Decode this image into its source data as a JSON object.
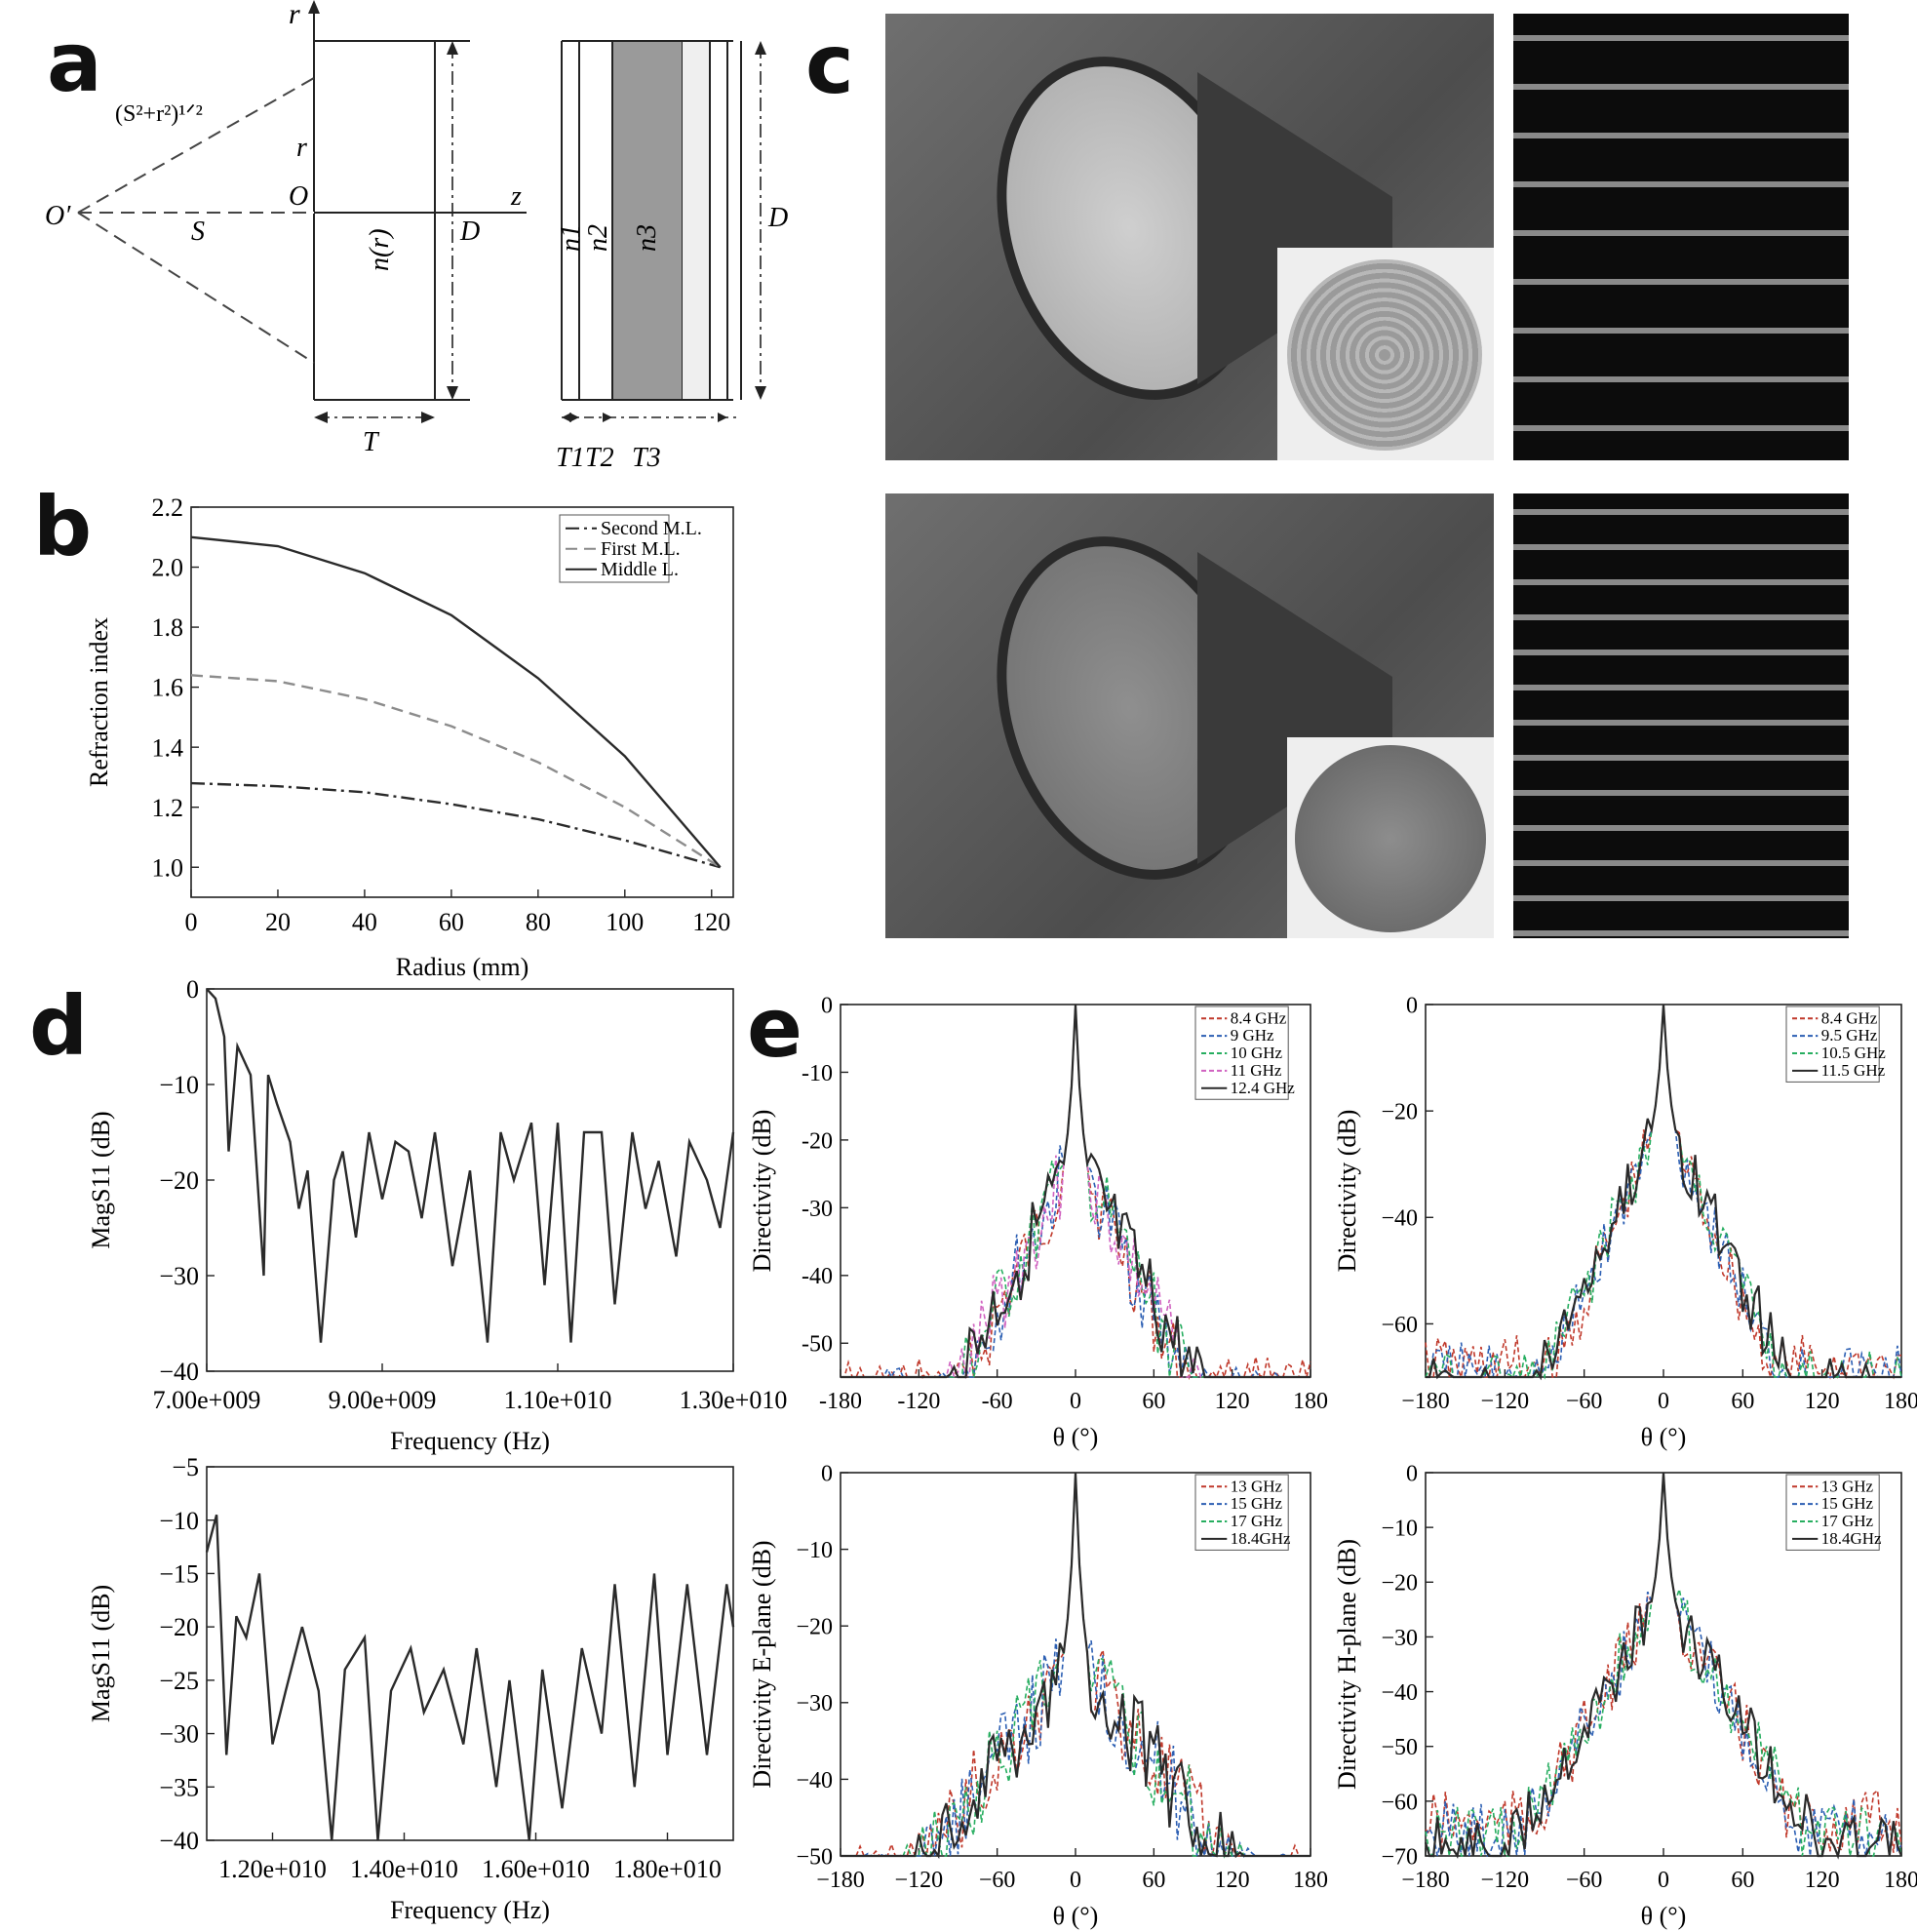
{
  "letters": {
    "a": "a",
    "b": "b",
    "c": "c",
    "d": "d",
    "e": "e"
  },
  "panel_a": {
    "r_axis": "r",
    "hyp": "(S²+r²)¹ᐟ²",
    "r": "r",
    "O": "O",
    "Oprime": "O′",
    "S": "S",
    "z": "z",
    "D": "D",
    "nr": "n(r)",
    "T": "T",
    "D2": "D",
    "n1": "n1",
    "n2": "n2",
    "n3": "n3",
    "T1": "T1",
    "T2": "T2",
    "T3": "T3"
  },
  "chart_data": [
    {
      "id": "b",
      "type": "line",
      "xlabel": "Radius (mm)",
      "ylabel": "Refraction index",
      "xlim": [
        0,
        125
      ],
      "ylim": [
        0.9,
        2.2
      ],
      "xticks": [
        0,
        20,
        40,
        60,
        80,
        100,
        120
      ],
      "yticks": [
        1.0,
        1.2,
        1.4,
        1.6,
        1.8,
        2.0,
        2.2
      ],
      "legend_position": "top-right",
      "series": [
        {
          "name": "Second M.L.",
          "style": "dashdot",
          "x": [
            0,
            20,
            40,
            60,
            80,
            100,
            122
          ],
          "y": [
            1.28,
            1.27,
            1.25,
            1.21,
            1.16,
            1.09,
            1.0
          ]
        },
        {
          "name": "First M.L.",
          "style": "dashed",
          "x": [
            0,
            20,
            40,
            60,
            80,
            100,
            122
          ],
          "y": [
            1.64,
            1.62,
            1.56,
            1.47,
            1.35,
            1.2,
            1.0
          ]
        },
        {
          "name": "Middle L.",
          "style": "solid",
          "x": [
            0,
            20,
            40,
            60,
            80,
            100,
            122
          ],
          "y": [
            2.1,
            2.07,
            1.98,
            1.84,
            1.63,
            1.37,
            1.0
          ]
        }
      ]
    },
    {
      "id": "d1",
      "type": "line",
      "xlabel": "Frequency (Hz)",
      "ylabel": "MagS11 (dB)",
      "xlim": [
        7000000000.0,
        13000000000.0
      ],
      "ylim": [
        -40,
        0
      ],
      "xticks": [
        7000000000.0,
        9000000000.0,
        11000000000.0,
        13000000000.0
      ],
      "xtick_labels": [
        "7.00e+009",
        "9.00e+009",
        "1.10e+010",
        "1.30e+010"
      ],
      "yticks": [
        0,
        -10,
        -20,
        -30,
        -40
      ],
      "series": [
        {
          "name": "",
          "x": [
            7000000000.0,
            7100000000.0,
            7200000000.0,
            7250000000.0,
            7350000000.0,
            7500000000.0,
            7650000000.0,
            7700000000.0,
            7800000000.0,
            7950000000.0,
            8050000000.0,
            8150000000.0,
            8300000000.0,
            8450000000.0,
            8550000000.0,
            8700000000.0,
            8850000000.0,
            9000000000.0,
            9150000000.0,
            9300000000.0,
            9450000000.0,
            9600000000.0,
            9800000000.0,
            10000000000.0,
            10200000000.0,
            10350000000.0,
            10500000000.0,
            10700000000.0,
            10850000000.0,
            11000000000.0,
            11150000000.0,
            11300000000.0,
            11500000000.0,
            11650000000.0,
            11850000000.0,
            12000000000.0,
            12150000000.0,
            12350000000.0,
            12500000000.0,
            12700000000.0,
            12850000000.0,
            13000000000.0
          ],
          "y": [
            0,
            -1,
            -5,
            -17,
            -6,
            -9,
            -30,
            -9,
            -12,
            -16,
            -23,
            -19,
            -37,
            -20,
            -17,
            -26,
            -15,
            -22,
            -16,
            -17,
            -24,
            -15,
            -29,
            -19,
            -37,
            -15,
            -20,
            -14,
            -31,
            -14,
            -37,
            -15,
            -15,
            -33,
            -15,
            -23,
            -18,
            -28,
            -16,
            -20,
            -25,
            -15
          ]
        }
      ]
    },
    {
      "id": "d2",
      "type": "line",
      "xlabel": "Frequency (Hz)",
      "ylabel": "MagS11 (dB)",
      "xlim": [
        11000000000.0,
        19000000000.0
      ],
      "ylim": [
        -40,
        -5
      ],
      "xticks": [
        12000000000.0,
        14000000000.0,
        16000000000.0,
        18000000000.0
      ],
      "xtick_labels": [
        "1.20e+010",
        "1.40e+010",
        "1.60e+010",
        "1.80e+010"
      ],
      "yticks": [
        -5,
        -10,
        -15,
        -20,
        -25,
        -30,
        -35,
        -40
      ],
      "series": [
        {
          "name": "",
          "x": [
            11000000000.0,
            11150000000.0,
            11300000000.0,
            11450000000.0,
            11600000000.0,
            11800000000.0,
            12000000000.0,
            12200000000.0,
            12450000000.0,
            12700000000.0,
            12900000000.0,
            13100000000.0,
            13400000000.0,
            13600000000.0,
            13800000000.0,
            14100000000.0,
            14300000000.0,
            14600000000.0,
            14900000000.0,
            15100000000.0,
            15400000000.0,
            15600000000.0,
            15900000000.0,
            16100000000.0,
            16400000000.0,
            16700000000.0,
            17000000000.0,
            17200000000.0,
            17500000000.0,
            17800000000.0,
            18000000000.0,
            18300000000.0,
            18600000000.0,
            18900000000.0,
            19000000000.0
          ],
          "y": [
            -13,
            -9.5,
            -32,
            -19,
            -21,
            -15,
            -31,
            -26,
            -20,
            -26,
            -40,
            -24,
            -21,
            -40,
            -26,
            -22,
            -28,
            -24,
            -31,
            -22,
            -35,
            -25,
            -40,
            -24,
            -37,
            -22,
            -30,
            -16,
            -35,
            -15,
            -32,
            -16,
            -32,
            -16,
            -20
          ]
        }
      ]
    },
    {
      "id": "e1",
      "type": "line",
      "xlabel": "θ (°)",
      "ylabel": "Directivity (dB)",
      "xlim": [
        -180,
        180
      ],
      "ylim": [
        -55,
        0
      ],
      "xticks": [
        -180,
        -120,
        -60,
        0,
        60,
        120,
        180
      ],
      "yticks": [
        0,
        -10,
        -20,
        -30,
        -40,
        -50
      ],
      "legend_position": "top-right",
      "series": [
        {
          "name": "8.4 GHz"
        },
        {
          "name": "9 GHz"
        },
        {
          "name": "10 GHz"
        },
        {
          "name": "11 GHz"
        },
        {
          "name": "12.4 GHz"
        }
      ]
    },
    {
      "id": "e2",
      "type": "line",
      "xlabel": "θ (°)",
      "ylabel": "Directivity (dB)",
      "xlim": [
        -180,
        180
      ],
      "ylim": [
        -70,
        0
      ],
      "xticks": [
        -180,
        -120,
        -60,
        0,
        60,
        120,
        180
      ],
      "xtick_labels": [
        "−180",
        "−120",
        "−60",
        "0",
        "60",
        "120",
        "180"
      ],
      "yticks": [
        0,
        -20,
        -40,
        -60
      ],
      "legend_position": "top-right",
      "series": [
        {
          "name": "8.4 GHz"
        },
        {
          "name": "9.5 GHz"
        },
        {
          "name": "10.5 GHz"
        },
        {
          "name": "11.5 GHz"
        }
      ]
    },
    {
      "id": "e3",
      "type": "line",
      "xlabel": "θ (°)",
      "ylabel": "Directivity E-plane (dB)",
      "xlim": [
        -180,
        180
      ],
      "ylim": [
        -50,
        0
      ],
      "xticks": [
        -180,
        -120,
        -60,
        0,
        60,
        120,
        180
      ],
      "xtick_labels": [
        "−180",
        "−120",
        "−60",
        "0",
        "60",
        "120",
        "180"
      ],
      "yticks": [
        0,
        -10,
        -20,
        -30,
        -40,
        -50
      ],
      "legend_position": "top-right",
      "series": [
        {
          "name": "13 GHz"
        },
        {
          "name": "15 GHz"
        },
        {
          "name": "17 GHz"
        },
        {
          "name": "18.4GHz"
        }
      ]
    },
    {
      "id": "e4",
      "type": "line",
      "xlabel": "θ (°)",
      "ylabel": "Directivity H-plane (dB)",
      "xlim": [
        -180,
        180
      ],
      "ylim": [
        -70,
        0
      ],
      "xticks": [
        -180,
        -120,
        -60,
        0,
        60,
        120,
        180
      ],
      "xtick_labels": [
        "−180",
        "−120",
        "−60",
        "0",
        "60",
        "120",
        "180"
      ],
      "yticks": [
        0,
        -10,
        -20,
        -30,
        -40,
        -50,
        -60,
        -70
      ],
      "legend_position": "top-right",
      "series": [
        {
          "name": "13 GHz"
        },
        {
          "name": "15 GHz"
        },
        {
          "name": "17 GHz"
        },
        {
          "name": "18.4GHz"
        }
      ]
    }
  ],
  "colors": {
    "axis": "#222222",
    "trace": "#2a2a2a",
    "grey_dash": "#8c8c8c",
    "pink": "#d062c0",
    "red": "#c0392b",
    "green": "#27ae60",
    "blue": "#2c5fb3",
    "cyan": "#2aa7a7"
  }
}
